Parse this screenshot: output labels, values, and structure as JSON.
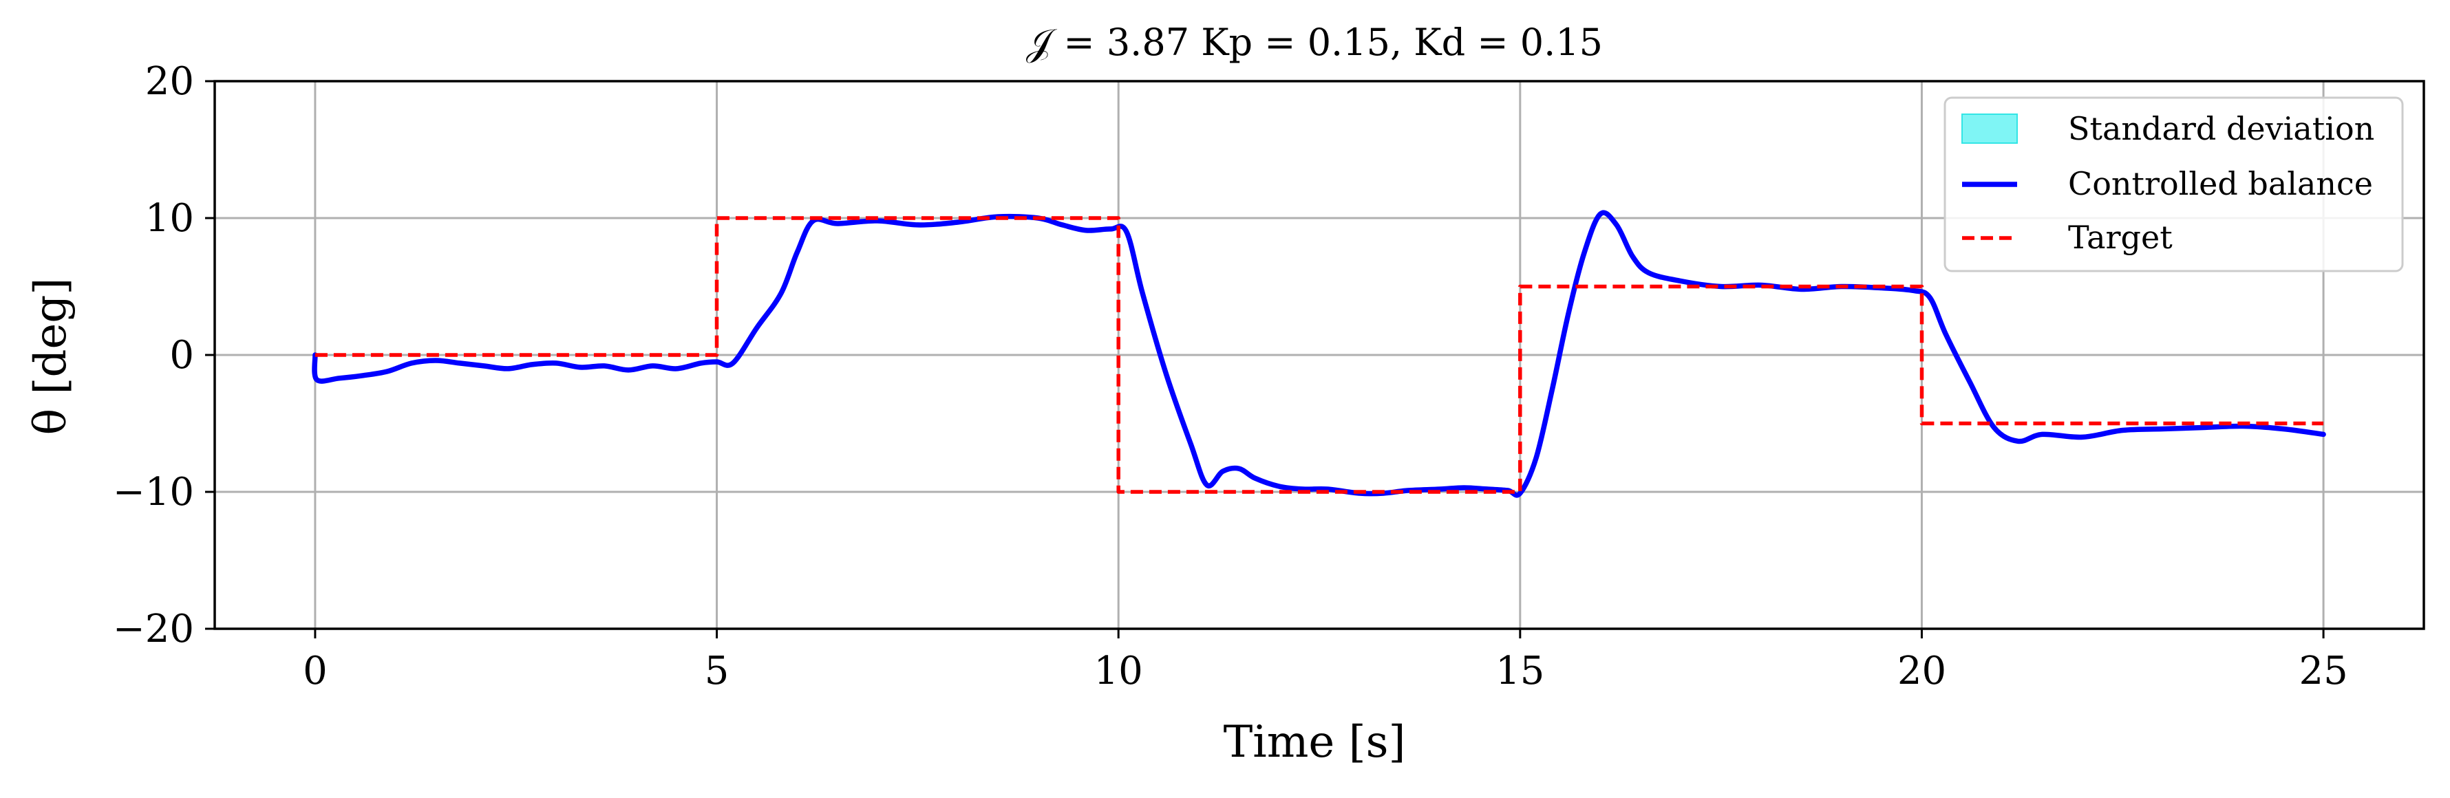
{
  "chart_data": {
    "type": "line",
    "title": "𝒥 = 3.87 Kp = 0.15, Kd = 0.15",
    "xlabel": "Time [s]",
    "ylabel": "θ [deg]",
    "xlim": [
      -1.25,
      26.25
    ],
    "ylim": [
      -20,
      20
    ],
    "xticks": [
      0,
      5,
      10,
      15,
      20,
      25
    ],
    "yticks": [
      -20,
      -10,
      0,
      10,
      20
    ],
    "xtick_labels": [
      "0",
      "5",
      "10",
      "15",
      "20",
      "25"
    ],
    "ytick_labels": [
      "−20",
      "−10",
      "0",
      "10",
      "20"
    ],
    "grid": true,
    "legend_position": "top-right",
    "legend": [
      {
        "label": "Standard deviation",
        "style": "fill",
        "color": "#7ff5f5"
      },
      {
        "label": "Controlled balance",
        "style": "solid",
        "color": "#0000ff"
      },
      {
        "label": "Target",
        "style": "dashed",
        "color": "#ff0000"
      }
    ],
    "series": [
      {
        "name": "Controlled balance",
        "color": "#0000ff",
        "style": "solid",
        "x": [
          0,
          0.02,
          0.3,
          0.6,
          0.9,
          1.2,
          1.5,
          1.8,
          2.1,
          2.4,
          2.7,
          3.0,
          3.3,
          3.6,
          3.9,
          4.2,
          4.5,
          4.8,
          5.0,
          5.2,
          5.5,
          5.8,
          6.0,
          6.2,
          6.5,
          7.0,
          7.5,
          8.0,
          8.5,
          9.0,
          9.3,
          9.6,
          9.9,
          10.1,
          10.3,
          10.6,
          10.9,
          11.1,
          11.3,
          11.5,
          11.7,
          12.0,
          12.3,
          12.6,
          13.0,
          13.3,
          13.6,
          14.0,
          14.3,
          14.6,
          14.85,
          15.0,
          15.2,
          15.4,
          15.6,
          15.8,
          16.0,
          16.2,
          16.4,
          16.6,
          17.0,
          17.5,
          18.0,
          18.5,
          19.0,
          19.5,
          19.9,
          20.1,
          20.3,
          20.6,
          20.9,
          21.2,
          21.5,
          22.0,
          22.5,
          23.0,
          23.5,
          24.0,
          24.5,
          25.0
        ],
        "y": [
          0,
          -1.8,
          -1.7,
          -1.5,
          -1.2,
          -0.6,
          -0.4,
          -0.6,
          -0.8,
          -1.0,
          -0.7,
          -0.6,
          -0.9,
          -0.8,
          -1.1,
          -0.8,
          -1.0,
          -0.6,
          -0.5,
          -0.6,
          2.0,
          4.5,
          7.5,
          9.8,
          9.6,
          9.8,
          9.5,
          9.7,
          10.1,
          10.0,
          9.5,
          9.1,
          9.2,
          9.0,
          4.5,
          -1.5,
          -6.5,
          -9.5,
          -8.5,
          -8.3,
          -9.0,
          -9.6,
          -9.8,
          -9.8,
          -10.1,
          -10.1,
          -9.9,
          -9.8,
          -9.7,
          -9.8,
          -9.9,
          -10.1,
          -7.5,
          -2.5,
          3.0,
          7.5,
          10.3,
          9.5,
          7.2,
          6.0,
          5.4,
          5.0,
          5.1,
          4.8,
          5.0,
          4.9,
          4.7,
          4.2,
          1.5,
          -2.0,
          -5.3,
          -6.3,
          -5.8,
          -6.0,
          -5.5,
          -5.4,
          -5.3,
          -5.2,
          -5.4,
          -5.8
        ]
      },
      {
        "name": "Target",
        "color": "#ff0000",
        "style": "dashed",
        "x": [
          0,
          5,
          5,
          10,
          10,
          15,
          15,
          20,
          20,
          25
        ],
        "y": [
          0,
          0,
          10,
          10,
          -10,
          -10,
          5,
          5,
          -5,
          -5
        ]
      }
    ]
  }
}
